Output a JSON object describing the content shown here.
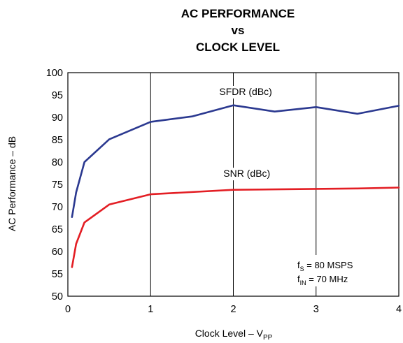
{
  "chart_data": {
    "type": "line",
    "title_lines": [
      "AC PERFORMANCE",
      "vs",
      "CLOCK LEVEL"
    ],
    "xlabel": "Clock Level – V",
    "xlabel_sub": "PP",
    "ylabel": "AC Performance – dB",
    "xlim": [
      0,
      4
    ],
    "ylim": [
      50,
      100
    ],
    "x_ticks": [
      0,
      1,
      2,
      3,
      4
    ],
    "y_ticks": [
      50,
      55,
      60,
      65,
      70,
      75,
      80,
      85,
      90,
      95,
      100
    ],
    "grid": "vertical lines at major x ticks",
    "series": [
      {
        "name": "SFDR (dBc)",
        "color": "#2b3990",
        "x": [
          0.05,
          0.1,
          0.2,
          0.5,
          1.0,
          1.5,
          2.0,
          2.5,
          3.0,
          3.5,
          4.0
        ],
        "y": [
          67.7,
          73.2,
          80.0,
          85.1,
          89.0,
          90.2,
          92.7,
          91.3,
          92.3,
          90.8,
          92.6
        ]
      },
      {
        "name": "SNR (dBc)",
        "color": "#e31e24",
        "x": [
          0.05,
          0.1,
          0.2,
          0.5,
          1.0,
          2.0,
          3.0,
          3.5,
          4.0
        ],
        "y": [
          56.5,
          61.7,
          66.5,
          70.5,
          72.8,
          73.8,
          74.0,
          74.1,
          74.3
        ]
      }
    ],
    "annotation": {
      "line1_main": "f",
      "line1_sub": "S",
      "line1_rest": " = 80 MSPS",
      "line2_main": "f",
      "line2_sub": "IN",
      "line2_rest": " = 70 MHz"
    }
  }
}
